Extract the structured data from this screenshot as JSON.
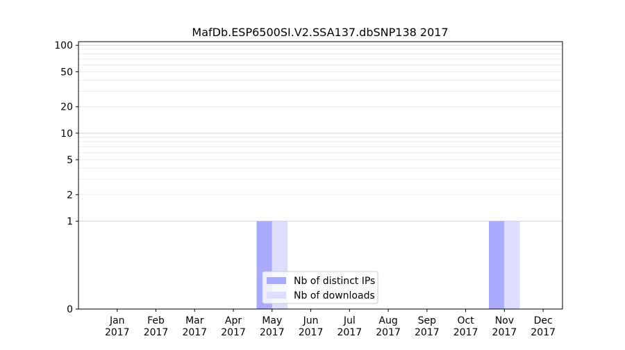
{
  "chart_data": {
    "type": "bar",
    "title": "MafDb.ESP6500SI.V2.SSA137.dbSNP138 2017",
    "xlabel": "",
    "ylabel": "",
    "yscale": "symlog",
    "ylim": [
      0,
      110
    ],
    "ytick_labels": [
      "0",
      "1",
      "2",
      "5",
      "10",
      "20",
      "50",
      "100"
    ],
    "categories": [
      "Jan\n2017",
      "Feb\n2017",
      "Mar\n2017",
      "Apr\n2017",
      "May\n2017",
      "Jun\n2017",
      "Jul\n2017",
      "Aug\n2017",
      "Sep\n2017",
      "Oct\n2017",
      "Nov\n2017",
      "Dec\n2017"
    ],
    "series": [
      {
        "name": "Nb of distinct IPs",
        "color": "#aaaaff",
        "values": [
          0,
          0,
          0,
          0,
          1,
          0,
          0,
          0,
          0,
          0,
          1,
          0
        ]
      },
      {
        "name": "Nb of downloads",
        "color": "#ddddff",
        "values": [
          0,
          0,
          0,
          0,
          1,
          0,
          0,
          0,
          0,
          0,
          1,
          0
        ]
      }
    ],
    "grid": true,
    "legend_position": "bottom-center"
  }
}
